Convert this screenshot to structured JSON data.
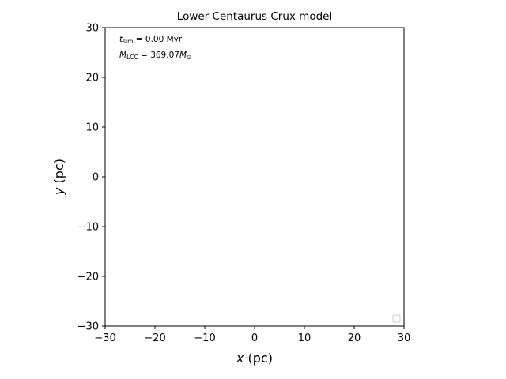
{
  "chart_data": {
    "type": "scatter",
    "title": "Lower Centaurus Crux model",
    "xlabel": {
      "var": "x",
      "unit": " (pc)"
    },
    "ylabel": {
      "var": "y",
      "unit": " (pc)"
    },
    "xlim": [
      -30,
      30
    ],
    "ylim": [
      -30,
      30
    ],
    "xticks": [
      -30,
      -20,
      -10,
      0,
      10,
      20,
      30
    ],
    "yticks": [
      -30,
      -20,
      -10,
      0,
      10,
      20,
      30
    ],
    "grid": false,
    "legend": {
      "placement": "lower-right",
      "entries": []
    },
    "series": [],
    "annotations": {
      "time": {
        "symbol": "t",
        "subscript": "sim",
        "value": " = 0.00 Myr"
      },
      "mass": {
        "symbol": "M",
        "subscript": "LCC",
        "value": " = 369.07",
        "unit_symbol": "M",
        "unit_subscript": "⊙"
      }
    }
  }
}
